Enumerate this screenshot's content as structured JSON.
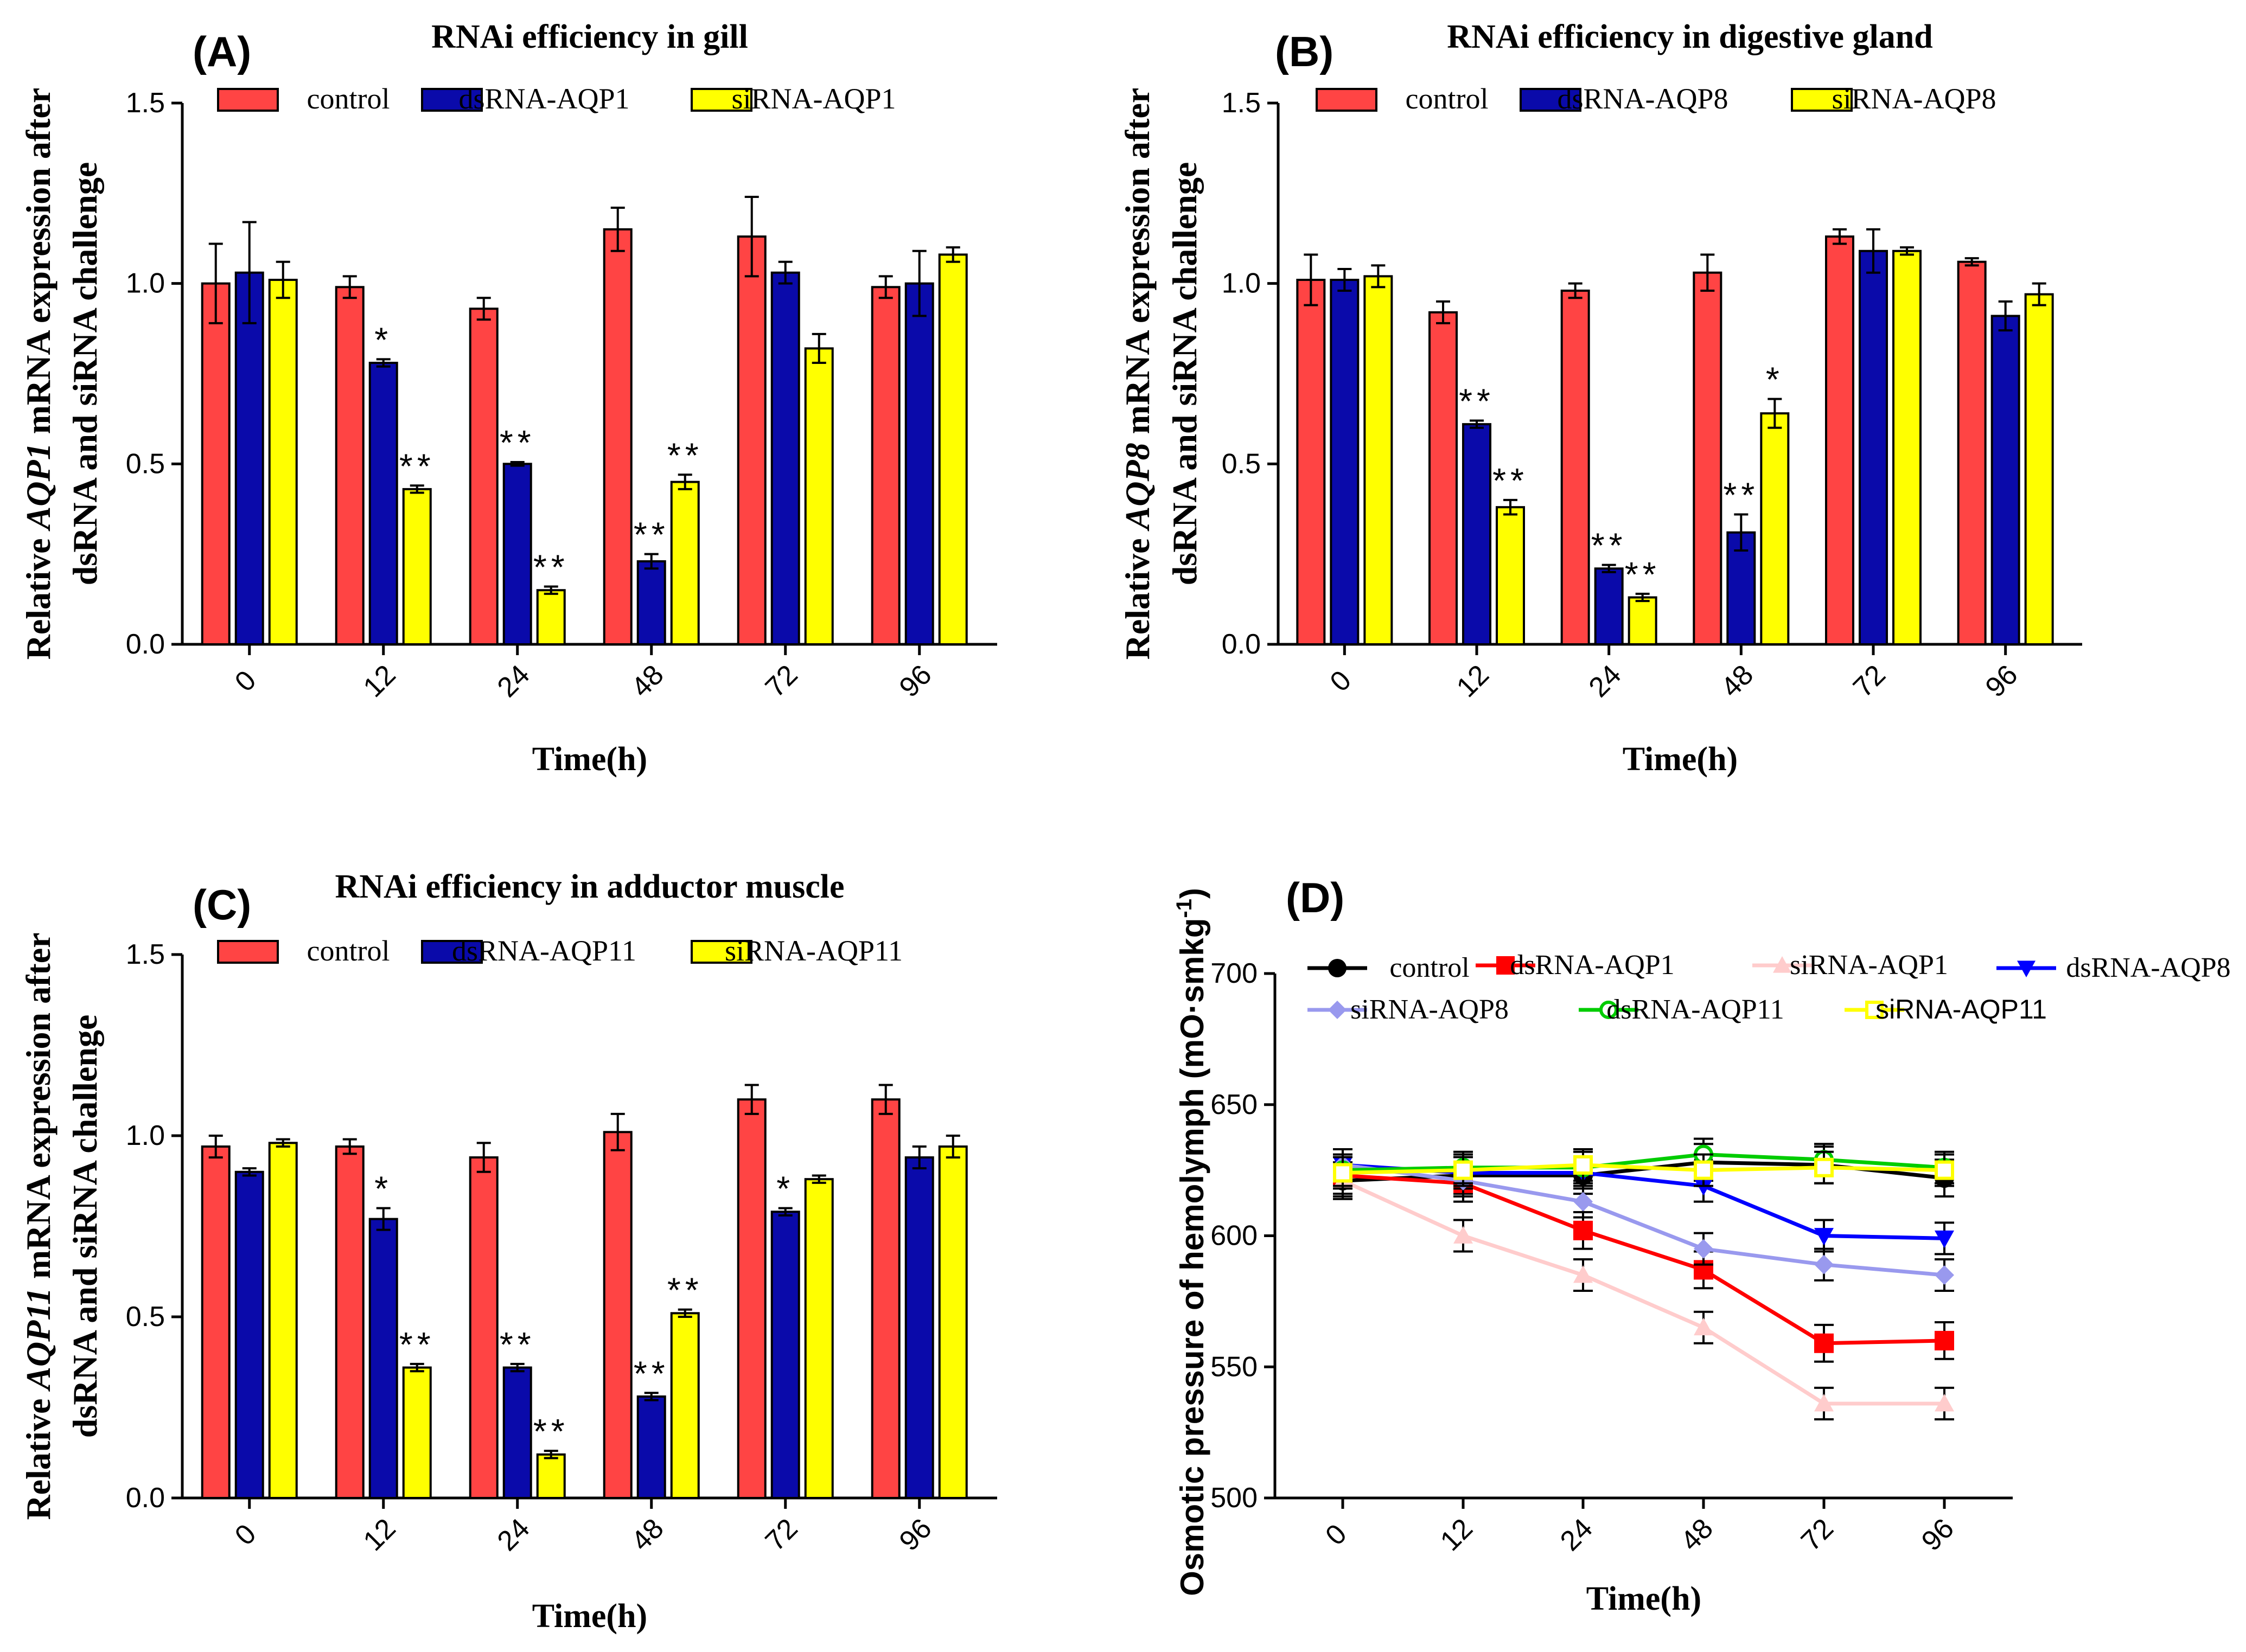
{
  "chart_data": [
    {
      "type": "bar",
      "panel_label": "(A)",
      "title": "RNAi efficiency in gill",
      "ylabel_parts": [
        "Relative ",
        "AQP1",
        " mRNA expression after"
      ],
      "ylabel_line2": "dsRNA and siRNA challenge",
      "xlabel": "Time(h)",
      "categories": [
        "0",
        "12",
        "24",
        "48",
        "72",
        "96"
      ],
      "ylim": [
        0,
        1.5
      ],
      "yticks": [
        "0.0",
        "0.5",
        "1.0",
        "1.5"
      ],
      "colors": [
        "#ff4444",
        "#0a0aaa",
        "#ffff00"
      ],
      "series": [
        {
          "name": "control",
          "values": [
            1.0,
            0.99,
            0.93,
            1.15,
            1.13,
            0.99
          ],
          "errors": [
            0.11,
            0.03,
            0.03,
            0.06,
            0.11,
            0.03
          ]
        },
        {
          "name": "dsRNA-AQP1",
          "values": [
            1.03,
            0.78,
            0.5,
            0.23,
            1.03,
            1.0
          ],
          "errors": [
            0.14,
            0.01,
            0.005,
            0.02,
            0.03,
            0.09
          ]
        },
        {
          "name": "siRNA-AQP1",
          "values": [
            1.01,
            0.43,
            0.15,
            0.45,
            0.82,
            1.08
          ],
          "errors": [
            0.05,
            0.01,
            0.01,
            0.02,
            0.04,
            0.02
          ]
        }
      ],
      "significance": [
        [
          "",
          "",
          ""
        ],
        [
          "",
          "*",
          "**"
        ],
        [
          "",
          "**",
          "**"
        ],
        [
          "",
          "**",
          "**"
        ],
        [
          "",
          "",
          ""
        ],
        [
          "",
          "",
          ""
        ]
      ]
    },
    {
      "type": "bar",
      "panel_label": "(B)",
      "title": "RNAi efficiency in digestive gland",
      "ylabel_parts": [
        "Relative ",
        "AQP8",
        " mRNA expression after"
      ],
      "ylabel_line2": "dsRNA and siRNA challenge",
      "xlabel": "Time(h)",
      "categories": [
        "0",
        "12",
        "24",
        "48",
        "72",
        "96"
      ],
      "ylim": [
        0,
        1.5
      ],
      "yticks": [
        "0.0",
        "0.5",
        "1.0",
        "1.5"
      ],
      "colors": [
        "#ff4444",
        "#0a0aaa",
        "#ffff00"
      ],
      "series": [
        {
          "name": "control",
          "values": [
            1.01,
            0.92,
            0.98,
            1.03,
            1.13,
            1.06
          ],
          "errors": [
            0.07,
            0.03,
            0.02,
            0.05,
            0.02,
            0.01
          ]
        },
        {
          "name": "dsRNA-AQP8",
          "values": [
            1.01,
            0.61,
            0.21,
            0.31,
            1.09,
            0.91
          ],
          "errors": [
            0.03,
            0.01,
            0.01,
            0.05,
            0.06,
            0.04
          ]
        },
        {
          "name": "siRNA-AQP8",
          "values": [
            1.02,
            0.38,
            0.13,
            0.64,
            1.09,
            0.97
          ],
          "errors": [
            0.03,
            0.02,
            0.01,
            0.04,
            0.01,
            0.03
          ]
        }
      ],
      "significance": [
        [
          "",
          "",
          ""
        ],
        [
          "",
          "**",
          "**"
        ],
        [
          "",
          "**",
          "**"
        ],
        [
          "",
          "**",
          "*"
        ],
        [
          "",
          "",
          ""
        ],
        [
          "",
          "",
          ""
        ]
      ]
    },
    {
      "type": "bar",
      "panel_label": "(C)",
      "title": "RNAi efficiency in adductor muscle",
      "ylabel_parts": [
        "Relative ",
        "AQP11",
        " mRNA expression after"
      ],
      "ylabel_line2": "dsRNA and siRNA challenge",
      "xlabel": "Time(h)",
      "categories": [
        "0",
        "12",
        "24",
        "48",
        "72",
        "96"
      ],
      "ylim": [
        0,
        1.5
      ],
      "yticks": [
        "0.0",
        "0.5",
        "1.0",
        "1.5"
      ],
      "colors": [
        "#ff4444",
        "#0a0aaa",
        "#ffff00"
      ],
      "series": [
        {
          "name": "control",
          "values": [
            0.97,
            0.97,
            0.94,
            1.01,
            1.1,
            1.1
          ],
          "errors": [
            0.03,
            0.02,
            0.04,
            0.05,
            0.04,
            0.04
          ]
        },
        {
          "name": "dsRNA-AQP11",
          "values": [
            0.9,
            0.77,
            0.36,
            0.28,
            0.79,
            0.94
          ],
          "errors": [
            0.01,
            0.03,
            0.01,
            0.01,
            0.01,
            0.03
          ]
        },
        {
          "name": "siRNA-AQP11",
          "values": [
            0.98,
            0.36,
            0.12,
            0.51,
            0.88,
            0.97
          ],
          "errors": [
            0.01,
            0.01,
            0.01,
            0.01,
            0.01,
            0.03
          ]
        }
      ],
      "significance": [
        [
          "",
          "",
          ""
        ],
        [
          "",
          "*",
          "**"
        ],
        [
          "",
          "**",
          "**"
        ],
        [
          "",
          "**",
          "**"
        ],
        [
          "",
          "*",
          ""
        ],
        [
          "",
          "",
          ""
        ]
      ]
    },
    {
      "type": "line",
      "panel_label": "(D)",
      "ylabel": "Osmotic pressure of hemolymph (mO·smkg",
      "ylabel_sup": "-1",
      "ylabel_end": ")",
      "xlabel": "Time(h)",
      "categories": [
        "0",
        "12",
        "24",
        "48",
        "72",
        "96"
      ],
      "ylim": [
        500,
        700
      ],
      "yticks": [
        "500",
        "550",
        "600",
        "650",
        "700"
      ],
      "series": [
        {
          "name": "control",
          "color": "#000000",
          "marker": "circle",
          "values": [
            621,
            623,
            623,
            628,
            627,
            622
          ],
          "error": 7
        },
        {
          "name": "dsRNA-AQP1",
          "color": "#ff0000",
          "marker": "square",
          "values": [
            623,
            620,
            602,
            587,
            559,
            560
          ],
          "error": 7
        },
        {
          "name": "siRNA-AQP1",
          "color": "#ffcccc",
          "marker": "triangle-up",
          "values": [
            621,
            600,
            585,
            565,
            536,
            536
          ],
          "error": 6
        },
        {
          "name": "dsRNA-AQP8",
          "color": "#0000ff",
          "marker": "triangle-down",
          "values": [
            627,
            624,
            624,
            619,
            600,
            599
          ],
          "error": 6
        },
        {
          "name": "siRNA-AQP8",
          "color": "#9999ee",
          "marker": "diamond",
          "values": [
            627,
            621,
            613,
            595,
            589,
            585
          ],
          "error": 6
        },
        {
          "name": "dsRNA-AQP11",
          "color": "#00cc00",
          "marker": "circle-open",
          "values": [
            625,
            626,
            626,
            631,
            629,
            626
          ],
          "error": 6
        },
        {
          "name": "siRNA-AQP11",
          "color": "#ffff00",
          "marker": "square-open",
          "values": [
            624,
            625,
            627,
            625,
            626,
            625
          ],
          "error": 6
        }
      ]
    }
  ]
}
